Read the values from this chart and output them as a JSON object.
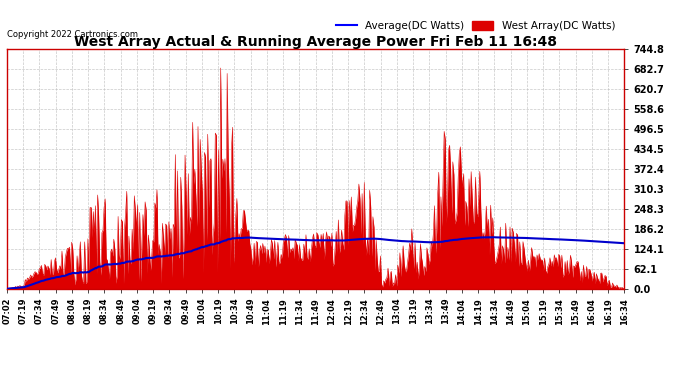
{
  "title": "West Array Actual & Running Average Power Fri Feb 11 16:48",
  "copyright": "Copyright 2022 Cartronics.com",
  "ylabel_right_ticks": [
    0.0,
    62.1,
    124.1,
    186.2,
    248.3,
    310.3,
    372.4,
    434.5,
    496.5,
    558.6,
    620.7,
    682.7,
    744.8
  ],
  "ymax": 744.8,
  "ymin": 0.0,
  "bg_color": "#ffffff",
  "grid_color": "#bbbbbb",
  "fill_color": "#dd0000",
  "avg_color": "#0000cc",
  "title_color": "#000000",
  "legend_avg_color": "#0000ff",
  "legend_west_color": "#dd0000",
  "xtick_labels": [
    "07:02",
    "07:19",
    "07:34",
    "07:49",
    "08:04",
    "08:19",
    "08:34",
    "08:49",
    "09:04",
    "09:19",
    "09:34",
    "09:49",
    "10:04",
    "10:19",
    "10:34",
    "10:49",
    "11:04",
    "11:19",
    "11:34",
    "11:49",
    "12:04",
    "12:19",
    "12:34",
    "12:49",
    "13:04",
    "13:19",
    "13:34",
    "13:49",
    "14:04",
    "14:19",
    "14:34",
    "14:49",
    "15:04",
    "15:19",
    "15:34",
    "15:49",
    "16:04",
    "16:19",
    "16:34"
  ]
}
